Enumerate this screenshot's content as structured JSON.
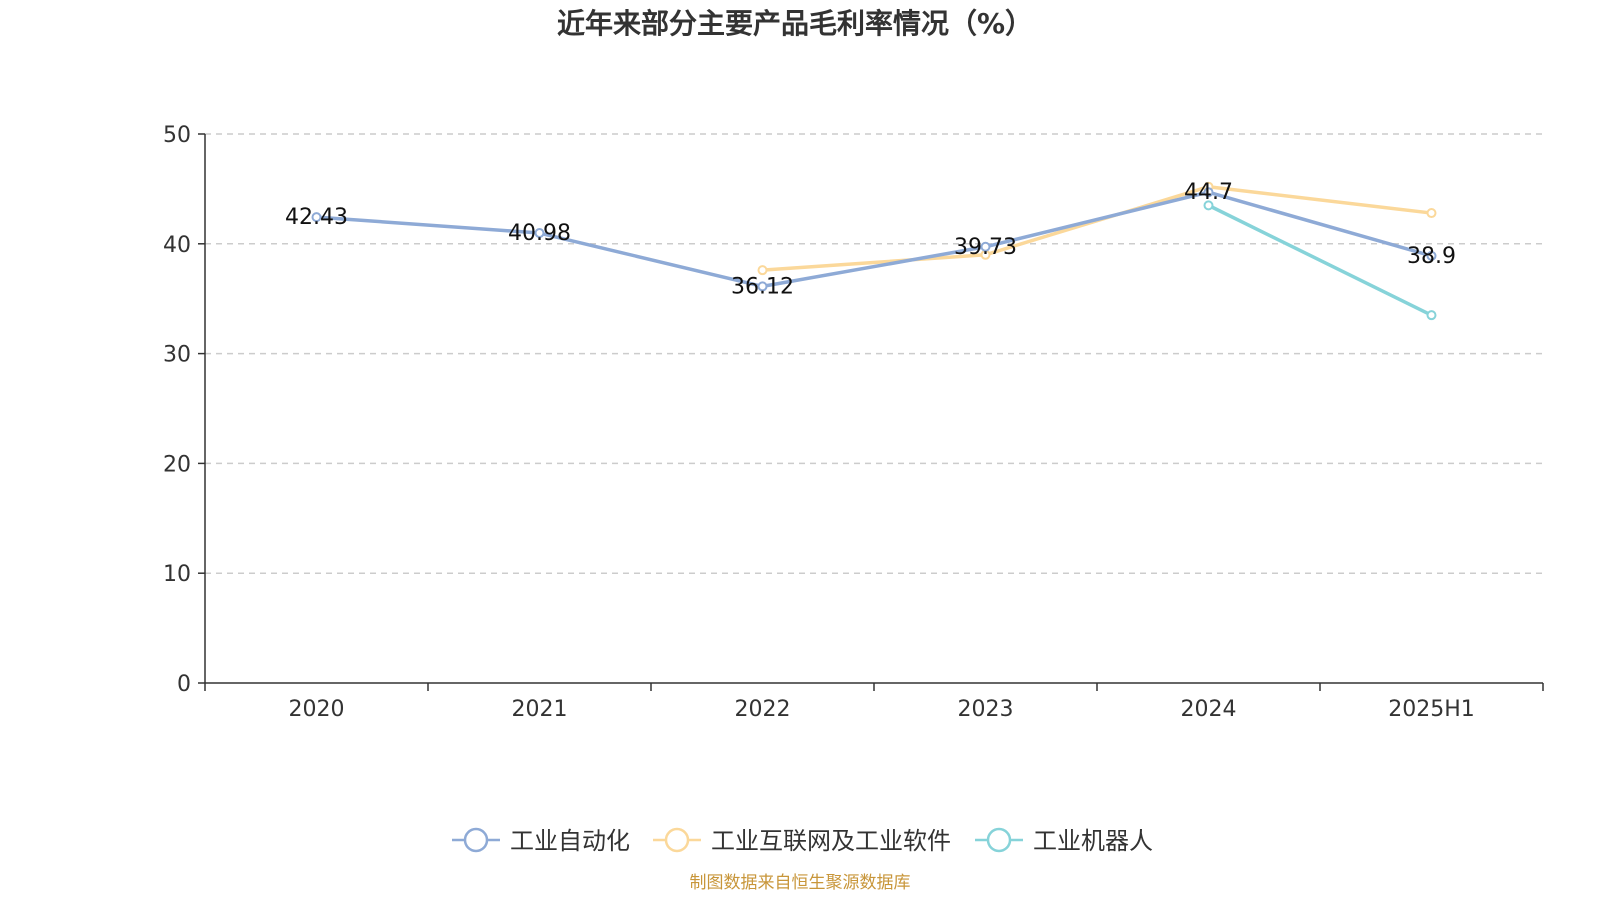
{
  "chart_data": {
    "type": "line",
    "title": "近年来部分主要产品毛利率情况（%）",
    "categories": [
      "2020",
      "2021",
      "2022",
      "2023",
      "2024",
      "2025H1"
    ],
    "ylim": [
      0,
      50
    ],
    "yticks": [
      "0",
      "10",
      "20",
      "30",
      "40",
      "50"
    ],
    "grid": true,
    "legend_position": "bottom-center",
    "series": [
      {
        "name": "工业自动化",
        "color": "#8eaad6",
        "values": [
          42.43,
          40.98,
          36.12,
          39.73,
          44.7,
          38.9
        ],
        "labels": [
          "42.43",
          "40.98",
          "36.12",
          "39.73",
          "44.7",
          "38.9"
        ]
      },
      {
        "name": "工业互联网及工业软件",
        "color": "#fbd89a",
        "values": [
          null,
          null,
          37.6,
          39.0,
          45.2,
          42.8
        ],
        "labels": []
      },
      {
        "name": "工业机器人",
        "color": "#86d3d9",
        "values": [
          null,
          null,
          null,
          null,
          43.5,
          33.5
        ],
        "labels": []
      }
    ],
    "source": "制图数据来自恒生聚源数据库"
  }
}
